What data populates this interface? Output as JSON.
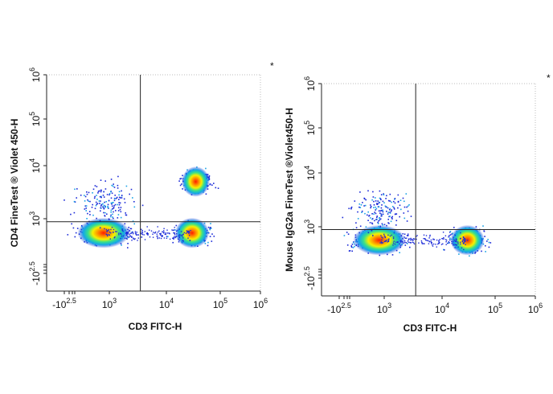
{
  "chart_data": [
    {
      "type": "scatter",
      "title": "",
      "xlabel": "CD3 FITC-H",
      "ylabel": "CD4  FineTest ® Violet 450-H",
      "corner_mark": "*",
      "x_scale": "biexponential",
      "y_scale": "biexponential",
      "xlim_decades": [
        -2.5,
        6
      ],
      "ylim_decades": [
        -2.5,
        6
      ],
      "x_tick_labels": [
        {
          "base": "-10",
          "exp": "2.5"
        },
        {
          "base": "10",
          "exp": "3"
        },
        {
          "base": "10",
          "exp": "4"
        },
        {
          "base": "10",
          "exp": "5"
        },
        {
          "base": "10",
          "exp": "6"
        }
      ],
      "y_tick_labels": [
        {
          "base": "-10",
          "exp": "2.5"
        },
        {
          "base": "10",
          "exp": "3"
        },
        {
          "base": "10",
          "exp": "4"
        },
        {
          "base": "10",
          "exp": "5"
        },
        {
          "base": "10",
          "exp": "6"
        }
      ],
      "quadrant_gate": {
        "x": 3500,
        "y": 500
      },
      "populations": [
        {
          "x": 200,
          "y": 60,
          "density": "high",
          "spread": "wide"
        },
        {
          "x": 30000,
          "y": 60,
          "density": "high",
          "spread": "medium"
        },
        {
          "x": 35000,
          "y": 5000,
          "density": "high",
          "spread": "small"
        },
        {
          "x": 300,
          "y": 2000,
          "density": "low",
          "spread": "diffuse"
        }
      ]
    },
    {
      "type": "scatter",
      "title": "",
      "xlabel": "CD3 FITC-H",
      "ylabel": "Mouse IgG2a  FineTest ®Violet450-H",
      "corner_mark": "*",
      "x_scale": "biexponential",
      "y_scale": "biexponential",
      "xlim_decades": [
        -2.5,
        6
      ],
      "ylim_decades": [
        -2.5,
        6
      ],
      "x_tick_labels": [
        {
          "base": "-10",
          "exp": "2.5"
        },
        {
          "base": "10",
          "exp": "3"
        },
        {
          "base": "10",
          "exp": "4"
        },
        {
          "base": "10",
          "exp": "5"
        },
        {
          "base": "10",
          "exp": "6"
        }
      ],
      "y_tick_labels": [
        {
          "base": "-10",
          "exp": "2.5"
        },
        {
          "base": "10",
          "exp": "3"
        },
        {
          "base": "10",
          "exp": "4"
        },
        {
          "base": "10",
          "exp": "5"
        },
        {
          "base": "10",
          "exp": "6"
        }
      ],
      "quadrant_gate": {
        "x": 3500,
        "y": 500
      },
      "populations": [
        {
          "x": 250,
          "y": 60,
          "density": "high",
          "spread": "wide"
        },
        {
          "x": 30000,
          "y": 60,
          "density": "high",
          "spread": "medium"
        },
        {
          "x": 300,
          "y": 2000,
          "density": "low",
          "spread": "diffuse"
        }
      ]
    }
  ]
}
